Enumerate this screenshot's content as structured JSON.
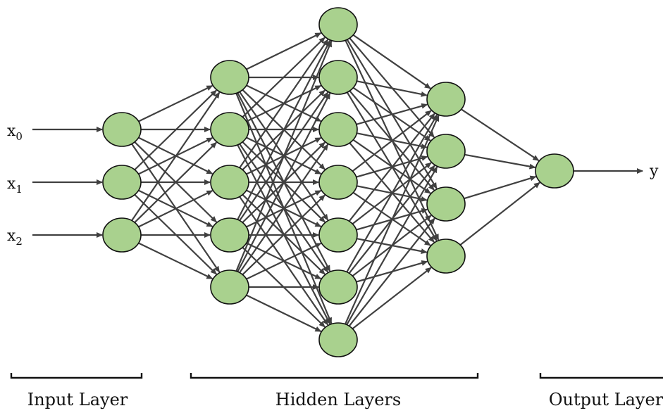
{
  "inputs": [
    {
      "base": "x",
      "sub": "0"
    },
    {
      "base": "x",
      "sub": "1"
    },
    {
      "base": "x",
      "sub": "2"
    }
  ],
  "output": {
    "label": "y"
  },
  "layers": [
    {
      "role": "input",
      "neurons": 3
    },
    {
      "role": "hidden",
      "neurons": 5
    },
    {
      "role": "hidden",
      "neurons": 7
    },
    {
      "role": "hidden",
      "neurons": 4
    },
    {
      "role": "output",
      "neurons": 1
    }
  ],
  "labels": {
    "input": "Input Layer",
    "hidden": "Hidden Layers",
    "output": "Output Layer"
  },
  "colors": {
    "neuron_fill": "#a9d18e",
    "neuron_stroke": "#111111",
    "edge": "#404040"
  }
}
